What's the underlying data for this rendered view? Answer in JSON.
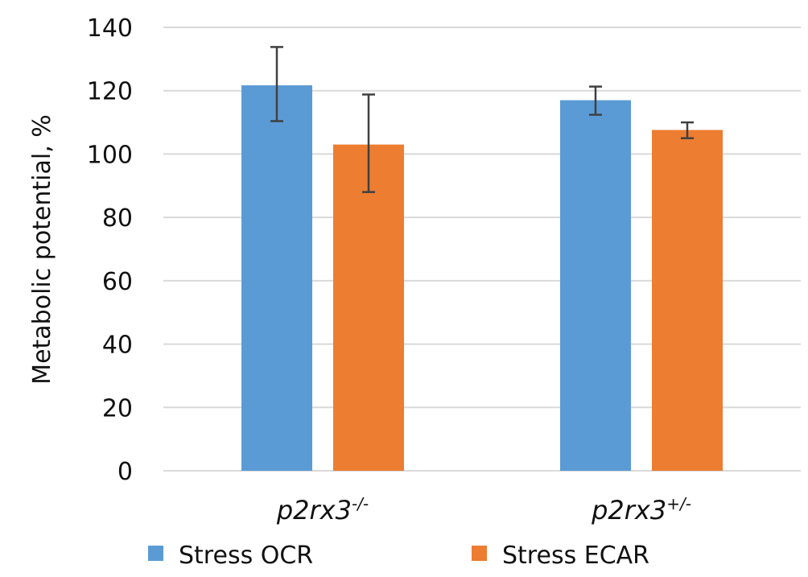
{
  "chart_data": {
    "type": "bar",
    "title": "",
    "xlabel": "",
    "ylabel": "Metabolic potential, %",
    "ylim": [
      0,
      140
    ],
    "yticks": [
      0,
      20,
      40,
      60,
      80,
      100,
      120,
      140
    ],
    "grid": true,
    "legend_position": "bottom",
    "categories": [
      {
        "base": "p2rx3",
        "sup": "-/-"
      },
      {
        "base": "p2rx3",
        "sup": "+/-"
      }
    ],
    "series": [
      {
        "name": "Stress OCR",
        "color": "#5b9bd5",
        "values": [
          121.7,
          117
        ],
        "error_upper": [
          133.8,
          121.3
        ],
        "error_lower": [
          110.4,
          112.4
        ]
      },
      {
        "name": "Stress ECAR",
        "color": "#ed7d31",
        "values": [
          103,
          107.6
        ],
        "error_upper": [
          118.8,
          110
        ],
        "error_lower": [
          88,
          105
        ]
      }
    ]
  }
}
